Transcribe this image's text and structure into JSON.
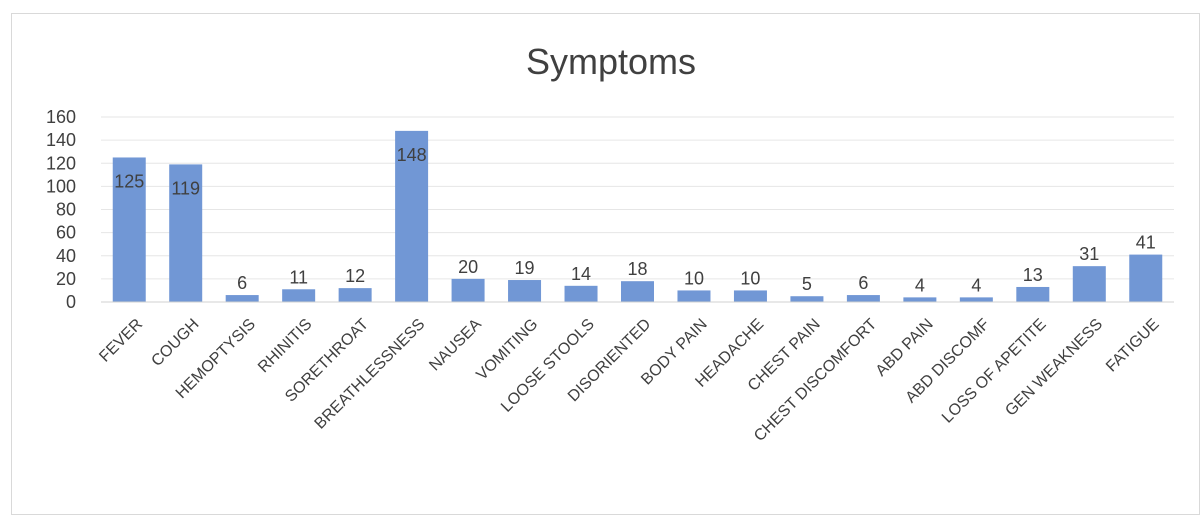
{
  "chart_data": {
    "type": "bar",
    "title": "Symptoms",
    "categories": [
      "FEVER",
      "COUGH",
      "HEMOPTYSIS",
      "RHINITIS",
      "SORETHROAT",
      "BREATHLESSNESS",
      "NAUSEA",
      "VOMITING",
      "LOOSE STOOLS",
      "DISORIENTED",
      "BODY PAIN",
      "HEADACHE",
      "CHEST PAIN",
      "CHEST DISCOMFORT",
      "ABD PAIN",
      "ABD DISCOMF",
      "LOSS OF APETITE",
      "GEN WEAKNESS",
      "FATIGUE"
    ],
    "values": [
      125,
      119,
      6,
      11,
      12,
      148,
      20,
      19,
      14,
      18,
      10,
      10,
      5,
      6,
      4,
      4,
      13,
      31,
      41
    ],
    "ylim": [
      0,
      160
    ],
    "yticks": [
      "0",
      "20",
      "40",
      "60",
      "80",
      "100",
      "120",
      "140",
      "160"
    ],
    "grid": true,
    "legend": "none",
    "bar_color": "#7197D5"
  }
}
